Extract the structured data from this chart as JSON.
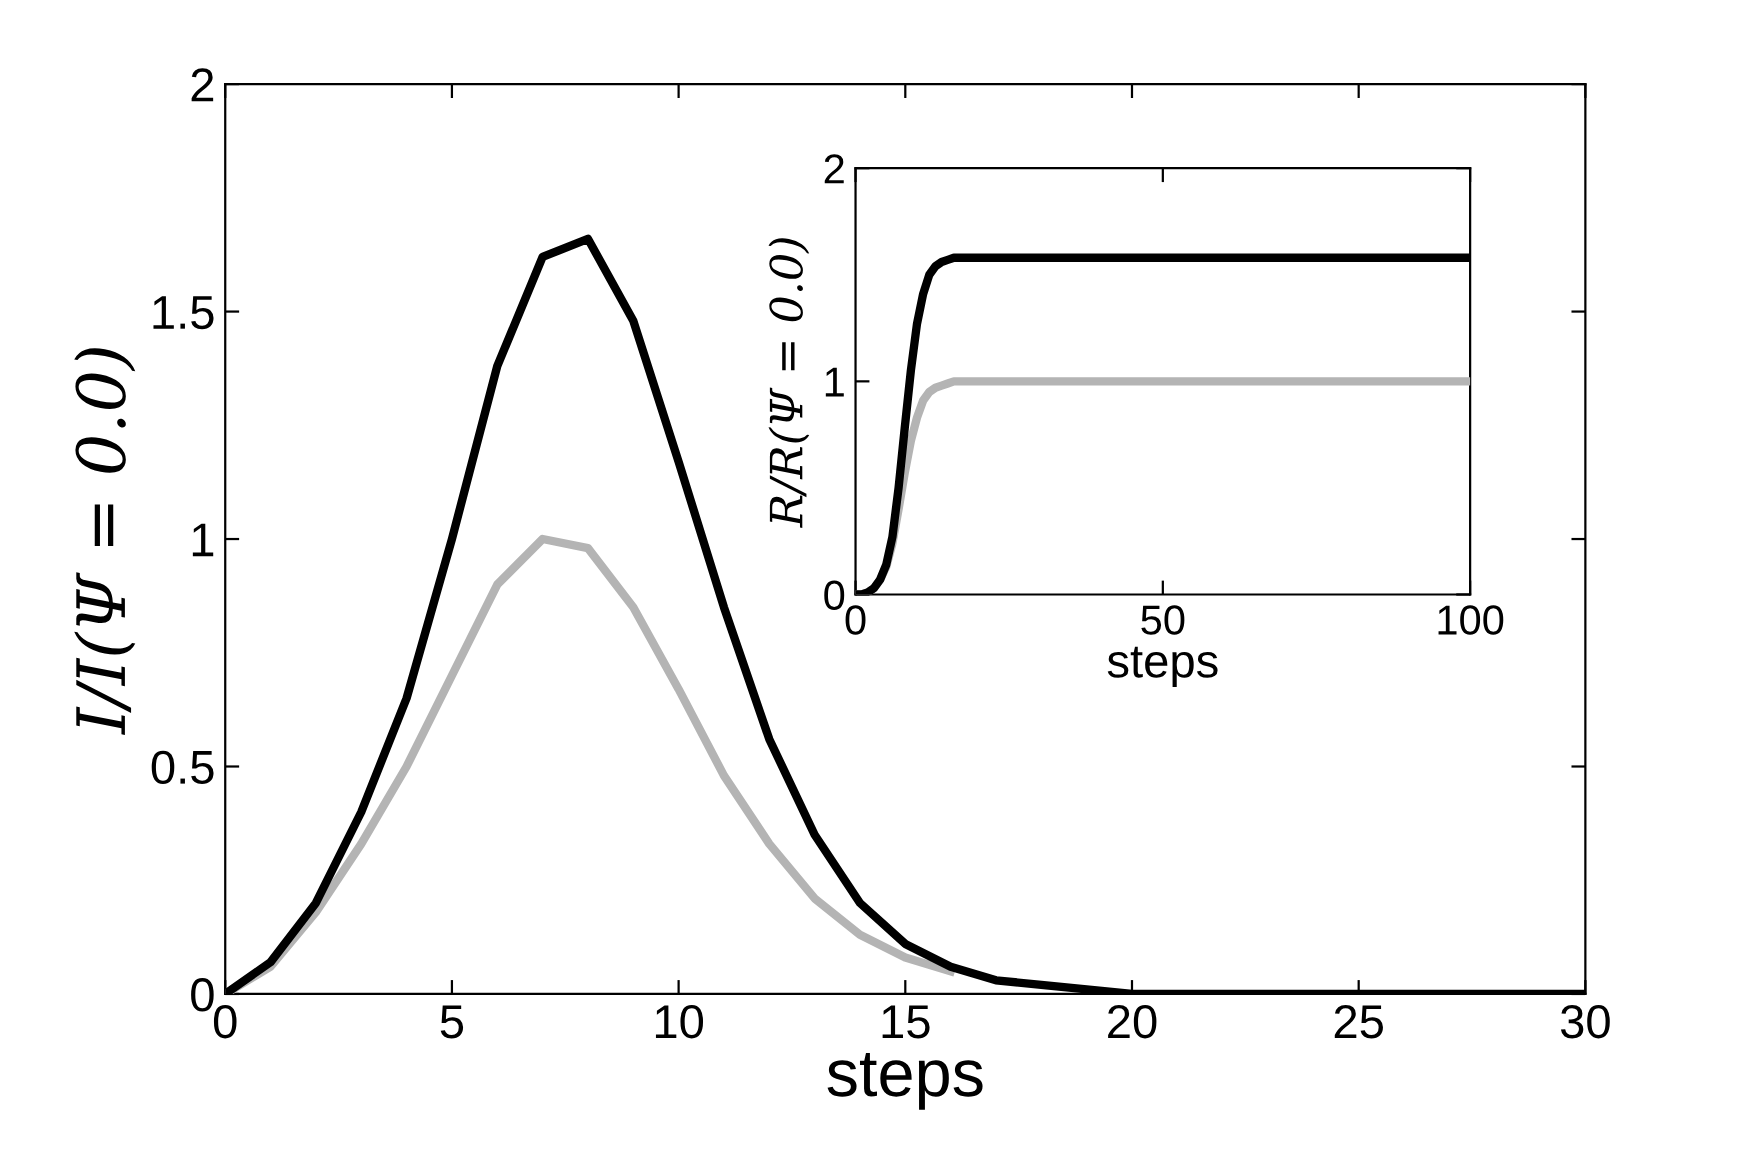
{
  "chart_data": [
    {
      "type": "line",
      "xlabel": "steps",
      "ylabel": "I/I(Ψ = 0.0)",
      "xlim": [
        0,
        30
      ],
      "ylim": [
        0,
        2
      ],
      "xticks": [
        0,
        5,
        10,
        15,
        20,
        25,
        30
      ],
      "yticks": [
        0,
        0.5,
        1,
        1.5,
        2
      ],
      "grid": false,
      "legend": false,
      "x": [
        0,
        1,
        2,
        3,
        4,
        5,
        6,
        7,
        8,
        9,
        10,
        11,
        12,
        13,
        14,
        15,
        16,
        17,
        18,
        19,
        20,
        21,
        22,
        23,
        24,
        25,
        26,
        27,
        28,
        29,
        30
      ],
      "series": [
        {
          "color": "#000000",
          "values": [
            0,
            0.07,
            0.2,
            0.4,
            0.65,
            1.0,
            1.38,
            1.62,
            1.66,
            1.48,
            1.17,
            0.85,
            0.56,
            0.35,
            0.2,
            0.11,
            0.06,
            0.03,
            0.02,
            0.01,
            0,
            0,
            0,
            0,
            0,
            0,
            0,
            0,
            0,
            0,
            0
          ]
        },
        {
          "color": "#b4b4b4",
          "values": [
            0,
            0.06,
            0.18,
            0.33,
            0.5,
            0.7,
            0.9,
            1.0,
            0.98,
            0.85,
            0.67,
            0.48,
            0.33,
            0.21,
            0.13,
            0.08,
            0.05,
            null,
            null,
            null,
            null,
            null,
            null,
            null,
            null,
            null,
            null,
            null,
            null,
            null,
            null
          ]
        }
      ]
    },
    {
      "type": "line",
      "xlabel": "steps",
      "ylabel": "R/R(Ψ = 0.0)",
      "xlim": [
        0,
        100
      ],
      "ylim": [
        0,
        2
      ],
      "xticks": [
        0,
        50,
        100
      ],
      "yticks": [
        0,
        1,
        2
      ],
      "grid": false,
      "legend": false,
      "x": [
        0,
        1,
        2,
        3,
        4,
        5,
        6,
        7,
        8,
        9,
        10,
        11,
        12,
        13,
        14,
        15,
        16,
        17,
        18,
        20,
        100
      ],
      "series": [
        {
          "color": "#000000",
          "values": [
            0,
            0,
            0.01,
            0.03,
            0.07,
            0.14,
            0.27,
            0.5,
            0.78,
            1.05,
            1.27,
            1.41,
            1.5,
            1.54,
            1.56,
            1.57,
            1.58,
            1.58,
            1.58,
            1.58,
            1.58
          ]
        },
        {
          "color": "#b4b4b4",
          "values": [
            0,
            0,
            0.01,
            0.03,
            0.07,
            0.13,
            0.24,
            0.4,
            0.57,
            0.72,
            0.83,
            0.91,
            0.95,
            0.97,
            0.98,
            0.99,
            1.0,
            1.0,
            1.0,
            1.0,
            1.0
          ]
        }
      ]
    }
  ]
}
